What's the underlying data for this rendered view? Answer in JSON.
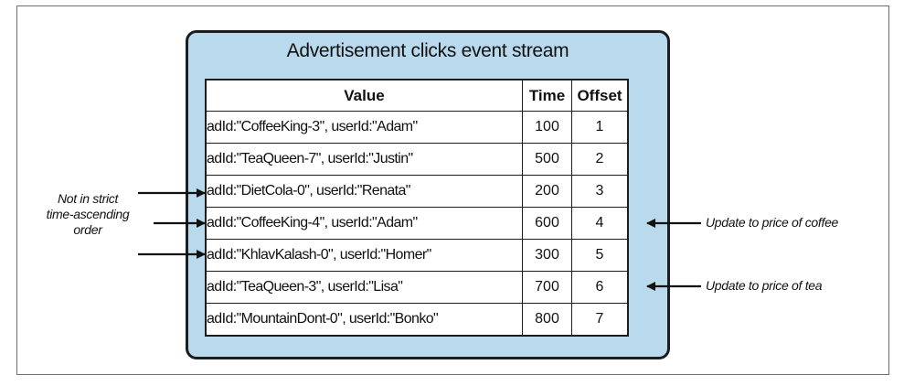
{
  "title": "Advertisement clicks event stream",
  "columns": [
    "Value",
    "Time",
    "Offset"
  ],
  "rows": [
    {
      "value": "adId:\"CoffeeKing-3\", userId:\"Adam\"",
      "time": "100",
      "offset": "1",
      "emphasized": false
    },
    {
      "value": "adId:\"TeaQueen-7\", userId:\"Justin\"",
      "time": "500",
      "offset": "2",
      "emphasized": false
    },
    {
      "value": "adId:\"DietCola-0\", userId:\"Renata\"",
      "time": "200",
      "offset": "3",
      "emphasized": true
    },
    {
      "value": "adId:\"CoffeeKing-4\", userId:\"Adam\"",
      "time": "600",
      "offset": "4",
      "emphasized": true
    },
    {
      "value": "adId:\"KhlavKalash-0\", userId:\"Homer\"",
      "time": "300",
      "offset": "5",
      "emphasized": true
    },
    {
      "value": "adId:\"TeaQueen-3\", userId:\"Lisa\"",
      "time": "700",
      "offset": "6",
      "emphasized": false
    },
    {
      "value": "adId:\"MountainDont-0\", userId:\"Bonko\"",
      "time": "800",
      "offset": "7",
      "emphasized": false
    }
  ],
  "annotations": {
    "left_note_lines": [
      "Not in strict",
      "time-ascending",
      "order"
    ],
    "coffee_note": "Update to price of coffee",
    "tea_note": "Update to price of tea"
  },
  "colors": {
    "panel_fill": "#b9d9ec",
    "border": "#1d1d1d"
  }
}
